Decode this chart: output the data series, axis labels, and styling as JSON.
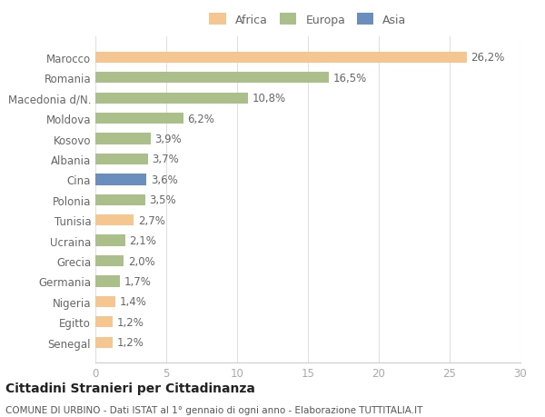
{
  "categories": [
    "Marocco",
    "Romania",
    "Macedonia d/N.",
    "Moldova",
    "Kosovo",
    "Albania",
    "Cina",
    "Polonia",
    "Tunisia",
    "Ucraina",
    "Grecia",
    "Germania",
    "Nigeria",
    "Egitto",
    "Senegal"
  ],
  "values": [
    26.2,
    16.5,
    10.8,
    6.2,
    3.9,
    3.7,
    3.6,
    3.5,
    2.7,
    2.1,
    2.0,
    1.7,
    1.4,
    1.2,
    1.2
  ],
  "labels": [
    "26,2%",
    "16,5%",
    "10,8%",
    "6,2%",
    "3,9%",
    "3,7%",
    "3,6%",
    "3,5%",
    "2,7%",
    "2,1%",
    "2,0%",
    "1,7%",
    "1,4%",
    "1,2%",
    "1,2%"
  ],
  "continents": [
    "Africa",
    "Europa",
    "Europa",
    "Europa",
    "Europa",
    "Europa",
    "Asia",
    "Europa",
    "Africa",
    "Europa",
    "Europa",
    "Europa",
    "Africa",
    "Africa",
    "Africa"
  ],
  "colors": {
    "Africa": "#F5C690",
    "Europa": "#AABF8A",
    "Asia": "#6A8FBF"
  },
  "legend_colors": {
    "Africa": "#F5C690",
    "Europa": "#AABF8A",
    "Asia": "#6A8FBF"
  },
  "xlim": [
    0,
    30
  ],
  "xticks": [
    0,
    5,
    10,
    15,
    20,
    25,
    30
  ],
  "background_color": "#ffffff",
  "grid_color": "#e0e0e0",
  "title": "Cittadini Stranieri per Cittadinanza",
  "subtitle": "COMUNE DI URBINO - Dati ISTAT al 1° gennaio di ogni anno - Elaborazione TUTTITALIA.IT",
  "bar_height": 0.55,
  "label_fontsize": 8.5,
  "tick_label_fontsize": 8.5,
  "title_fontsize": 10,
  "subtitle_fontsize": 7.5
}
